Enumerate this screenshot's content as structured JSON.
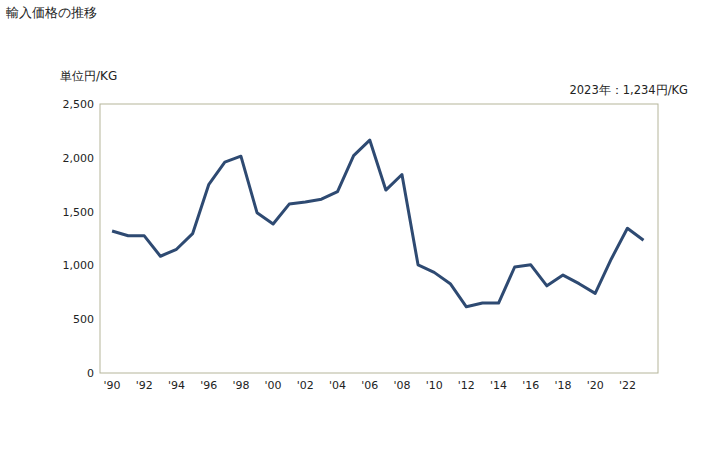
{
  "chart_data": {
    "type": "line",
    "title": "輸入価格の推移",
    "ylabel": "単位円/KG",
    "annotation": "2023年：1,234円/KG",
    "x": [
      1990,
      1991,
      1992,
      1993,
      1994,
      1995,
      1996,
      1997,
      1998,
      1999,
      2000,
      2001,
      2002,
      2003,
      2004,
      2005,
      2006,
      2007,
      2008,
      2009,
      2010,
      2011,
      2012,
      2013,
      2014,
      2015,
      2016,
      2017,
      2018,
      2019,
      2020,
      2021,
      2022,
      2023
    ],
    "values": [
      1320,
      1275,
      1275,
      1085,
      1150,
      1295,
      1750,
      1960,
      2015,
      1490,
      1385,
      1570,
      1590,
      1615,
      1685,
      2020,
      2165,
      1700,
      1845,
      1005,
      935,
      830,
      615,
      650,
      650,
      985,
      1005,
      810,
      910,
      830,
      740,
      1060,
      1345,
      1234
    ],
    "color": "#2e4a72",
    "xlim": [
      1989.25,
      2023.9
    ],
    "xticks": [
      {
        "value": 1990,
        "label": "'90"
      },
      {
        "value": 1992,
        "label": "'92"
      },
      {
        "value": 1994,
        "label": "'94"
      },
      {
        "value": 1996,
        "label": "'96"
      },
      {
        "value": 1998,
        "label": "'98"
      },
      {
        "value": 2000,
        "label": "'00"
      },
      {
        "value": 2002,
        "label": "'02"
      },
      {
        "value": 2004,
        "label": "'04"
      },
      {
        "value": 2006,
        "label": "'06"
      },
      {
        "value": 2008,
        "label": "'08"
      },
      {
        "value": 2010,
        "label": "'10"
      },
      {
        "value": 2012,
        "label": "'12"
      },
      {
        "value": 2014,
        "label": "'14"
      },
      {
        "value": 2016,
        "label": "'16"
      },
      {
        "value": 2018,
        "label": "'18"
      },
      {
        "value": 2020,
        "label": "'20"
      },
      {
        "value": 2022,
        "label": "'22"
      }
    ],
    "ylim": [
      0,
      2500
    ],
    "yticks": [
      0,
      500,
      {
        "value": 1000,
        "label": "1,000"
      },
      {
        "value": 1500,
        "label": "1,500"
      },
      {
        "value": 2000,
        "label": "2,000"
      },
      {
        "value": 2500,
        "label": "2,500"
      }
    ],
    "grid": false
  }
}
